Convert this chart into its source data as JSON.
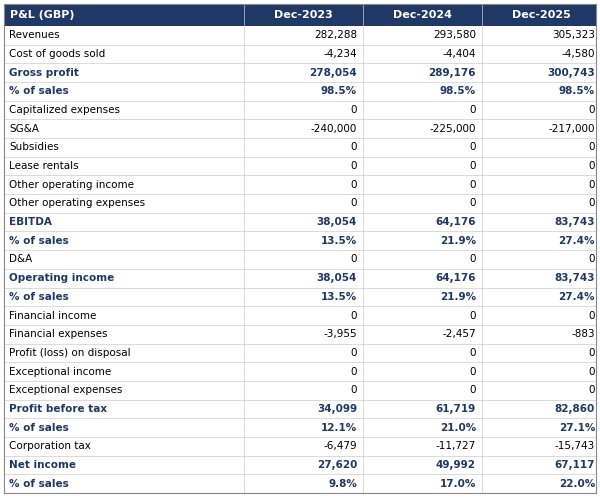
{
  "header_bg": "#1F3864",
  "header_text_color": "#FFFFFF",
  "bold_row_text_color": "#1F3864",
  "normal_text_color": "#000000",
  "border_color": "#CCCCCC",
  "col_header": "P&L (GBP)",
  "columns": [
    "Dec-2023",
    "Dec-2024",
    "Dec-2025"
  ],
  "rows": [
    {
      "label": "Revenues",
      "values": [
        "282,288",
        "293,580",
        "305,323"
      ],
      "bold": false
    },
    {
      "label": "Cost of goods sold",
      "values": [
        "-4,234",
        "-4,404",
        "-4,580"
      ],
      "bold": false
    },
    {
      "label": "Gross profit",
      "values": [
        "278,054",
        "289,176",
        "300,743"
      ],
      "bold": true
    },
    {
      "label": "% of sales",
      "values": [
        "98.5%",
        "98.5%",
        "98.5%"
      ],
      "bold": true
    },
    {
      "label": "Capitalized expenses",
      "values": [
        "0",
        "0",
        "0"
      ],
      "bold": false
    },
    {
      "label": "SG&A",
      "values": [
        "-240,000",
        "-225,000",
        "-217,000"
      ],
      "bold": false
    },
    {
      "label": "Subsidies",
      "values": [
        "0",
        "0",
        "0"
      ],
      "bold": false
    },
    {
      "label": "Lease rentals",
      "values": [
        "0",
        "0",
        "0"
      ],
      "bold": false
    },
    {
      "label": "Other operating income",
      "values": [
        "0",
        "0",
        "0"
      ],
      "bold": false
    },
    {
      "label": "Other operating expenses",
      "values": [
        "0",
        "0",
        "0"
      ],
      "bold": false
    },
    {
      "label": "EBITDA",
      "values": [
        "38,054",
        "64,176",
        "83,743"
      ],
      "bold": true
    },
    {
      "label": "% of sales",
      "values": [
        "13.5%",
        "21.9%",
        "27.4%"
      ],
      "bold": true
    },
    {
      "label": "D&A",
      "values": [
        "0",
        "0",
        "0"
      ],
      "bold": false
    },
    {
      "label": "Operating income",
      "values": [
        "38,054",
        "64,176",
        "83,743"
      ],
      "bold": true
    },
    {
      "label": "% of sales",
      "values": [
        "13.5%",
        "21.9%",
        "27.4%"
      ],
      "bold": true
    },
    {
      "label": "Financial income",
      "values": [
        "0",
        "0",
        "0"
      ],
      "bold": false
    },
    {
      "label": "Financial expenses",
      "values": [
        "-3,955",
        "-2,457",
        "-883"
      ],
      "bold": false
    },
    {
      "label": "Profit (loss) on disposal",
      "values": [
        "0",
        "0",
        "0"
      ],
      "bold": false
    },
    {
      "label": "Exceptional income",
      "values": [
        "0",
        "0",
        "0"
      ],
      "bold": false
    },
    {
      "label": "Exceptional expenses",
      "values": [
        "0",
        "0",
        "0"
      ],
      "bold": false
    },
    {
      "label": "Profit before tax",
      "values": [
        "34,099",
        "61,719",
        "82,860"
      ],
      "bold": true
    },
    {
      "label": "% of sales",
      "values": [
        "12.1%",
        "21.0%",
        "27.1%"
      ],
      "bold": true
    },
    {
      "label": "Corporation tax",
      "values": [
        "-6,479",
        "-11,727",
        "-15,743"
      ],
      "bold": false
    },
    {
      "label": "Net income",
      "values": [
        "27,620",
        "49,992",
        "67,117"
      ],
      "bold": true
    },
    {
      "label": "% of sales",
      "values": [
        "9.8%",
        "17.0%",
        "22.0%"
      ],
      "bold": true
    }
  ],
  "header_font_size": 8.0,
  "row_font_size": 7.5,
  "fig_width": 6.0,
  "fig_height": 4.97
}
